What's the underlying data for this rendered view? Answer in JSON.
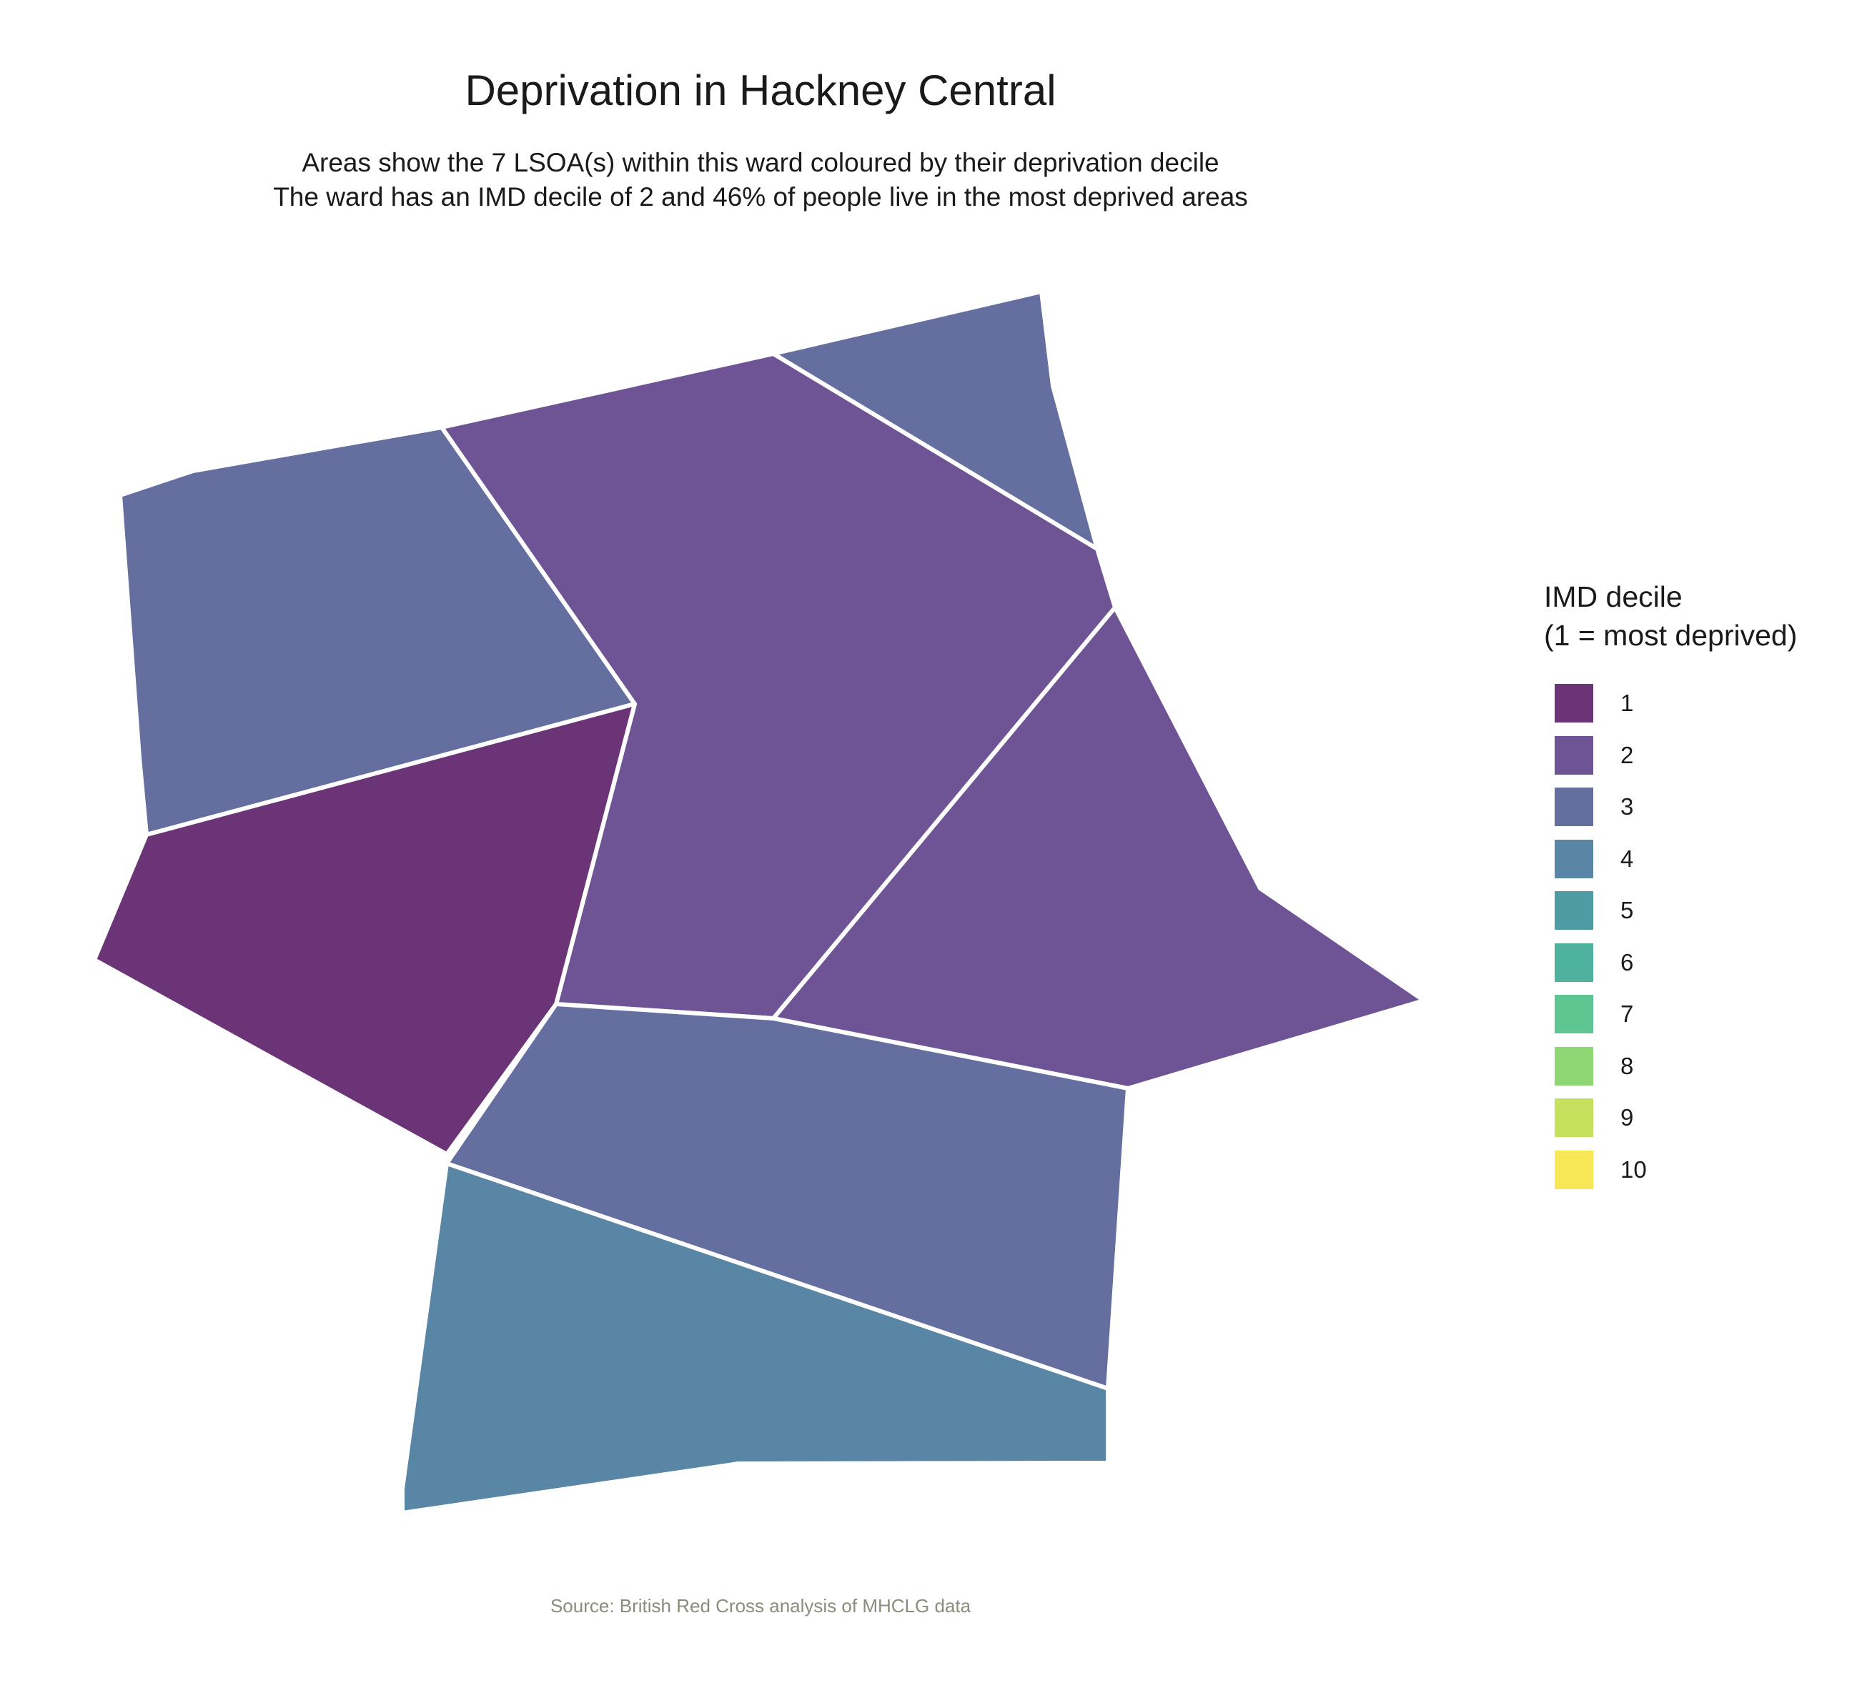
{
  "map": {
    "title": "Deprivation in Hackney Central",
    "subtitle_line1": "Areas show the 7 LSOA(s) within this ward coloured by their deprivation decile",
    "subtitle_line2": "The ward has an IMD decile of 2 and 46% of people live in the most deprived areas",
    "caption": "Source: British Red Cross analysis of MHCLG data",
    "border_color": "#ffffff"
  },
  "legend": {
    "title_line1": "IMD decile",
    "title_line2": "(1 = most deprived)",
    "items": [
      {
        "label": "1",
        "color": "#6a3477"
      },
      {
        "label": "2",
        "color": "#6e5494"
      },
      {
        "label": "3",
        "color": "#646e9f"
      },
      {
        "label": "4",
        "color": "#5886a4"
      },
      {
        "label": "5",
        "color": "#4f9ba3"
      },
      {
        "label": "6",
        "color": "#4eb29f"
      },
      {
        "label": "7",
        "color": "#5fc692"
      },
      {
        "label": "8",
        "color": "#8fd774"
      },
      {
        "label": "9",
        "color": "#c5e05c"
      },
      {
        "label": "10",
        "color": "#f7e757"
      }
    ]
  },
  "areas": [
    {
      "name": "lsoa-north-west",
      "decile": 3
    },
    {
      "name": "lsoa-north-central",
      "decile": 2
    },
    {
      "name": "lsoa-north-east",
      "decile": 3
    },
    {
      "name": "lsoa-west",
      "decile": 1
    },
    {
      "name": "lsoa-east",
      "decile": 2
    },
    {
      "name": "lsoa-south-central",
      "decile": 3
    },
    {
      "name": "lsoa-south",
      "decile": 4
    }
  ]
}
